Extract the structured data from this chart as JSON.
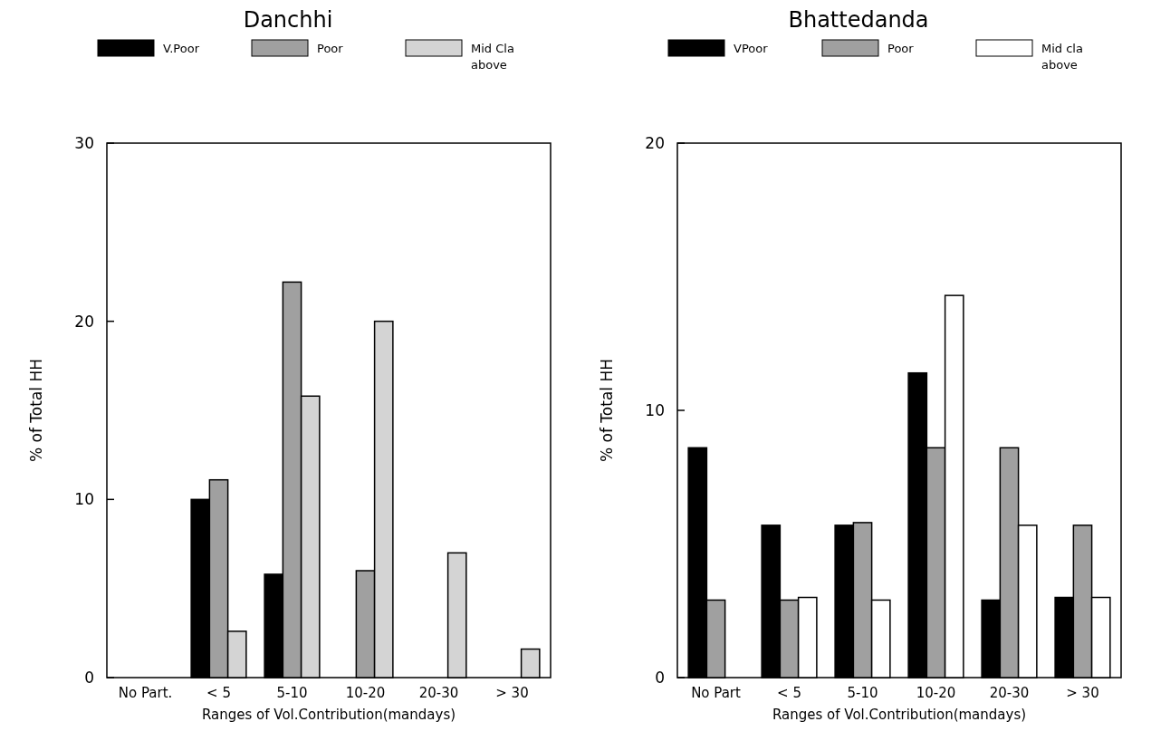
{
  "chart_data": [
    {
      "type": "bar",
      "title": "Danchhi",
      "xlabel": "Ranges of Vol.Contribution(mandays)",
      "ylabel": "% of Total HH",
      "categories": [
        "No Part.",
        "< 5",
        "5-10",
        "10-20",
        "20-30",
        "> 30"
      ],
      "series": [
        {
          "name": "V.Poor",
          "color": "#000000",
          "values": [
            0,
            10,
            5.8,
            0,
            0,
            0
          ]
        },
        {
          "name": "Poor",
          "color": "#a0a0a0",
          "values": [
            0,
            11.1,
            22.2,
            6,
            0,
            0
          ]
        },
        {
          "name": "Mid Cla above",
          "color": "#d4d4d4",
          "values": [
            0,
            2.6,
            15.8,
            20,
            7,
            1.6
          ]
        }
      ],
      "ylim": [
        0,
        30
      ],
      "yticks": [
        0,
        10,
        20,
        30
      ],
      "legend": "top",
      "grid": false
    },
    {
      "type": "bar",
      "title": "Bhattedanda",
      "xlabel": "Ranges of Vol.Contribution(mandays)",
      "ylabel": "% of Total HH",
      "categories": [
        "No Part",
        "< 5",
        "5-10",
        "10-20",
        "20-30",
        "> 30"
      ],
      "series": [
        {
          "name": "VPoor",
          "color": "#000000",
          "values": [
            8.6,
            5.7,
            5.7,
            11.4,
            2.9,
            3.0
          ]
        },
        {
          "name": "Poor",
          "color": "#a0a0a0",
          "values": [
            2.9,
            2.9,
            5.8,
            8.6,
            8.6,
            5.7
          ]
        },
        {
          "name": "Mid cla above",
          "color": "#ffffff",
          "values": [
            0,
            3.0,
            2.9,
            14.3,
            5.7,
            3.0
          ]
        }
      ],
      "ylim": [
        0,
        20
      ],
      "yticks": [
        0,
        10,
        20
      ],
      "legend": "top",
      "grid": false
    }
  ]
}
